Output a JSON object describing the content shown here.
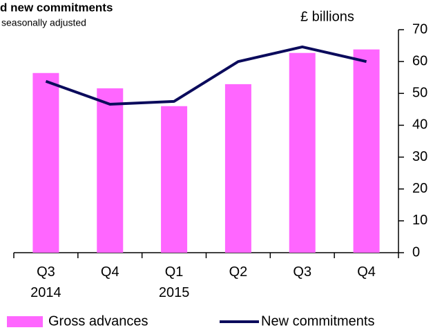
{
  "chart_data": {
    "type": "bar_line",
    "title": "d new commitments",
    "subtitle": "seasonally adjusted",
    "y_axis_label": "£ billions",
    "categories": [
      "Q3 2014",
      "Q4",
      "Q1 2015",
      "Q2",
      "Q3",
      "Q4"
    ],
    "series": [
      {
        "name": "Gross advances",
        "type": "bar",
        "color": "#ff66ff",
        "values": [
          56.4,
          51.6,
          46,
          52.9,
          62.7,
          63.8
        ]
      },
      {
        "name": "New commitments",
        "type": "line",
        "color": "#0b0b5c",
        "values": [
          53.8,
          46.6,
          47.5,
          60,
          64.6,
          60
        ]
      }
    ],
    "ylim": [
      0,
      70
    ],
    "yticks": [
      0,
      10,
      20,
      30,
      40,
      50,
      60,
      70
    ]
  }
}
